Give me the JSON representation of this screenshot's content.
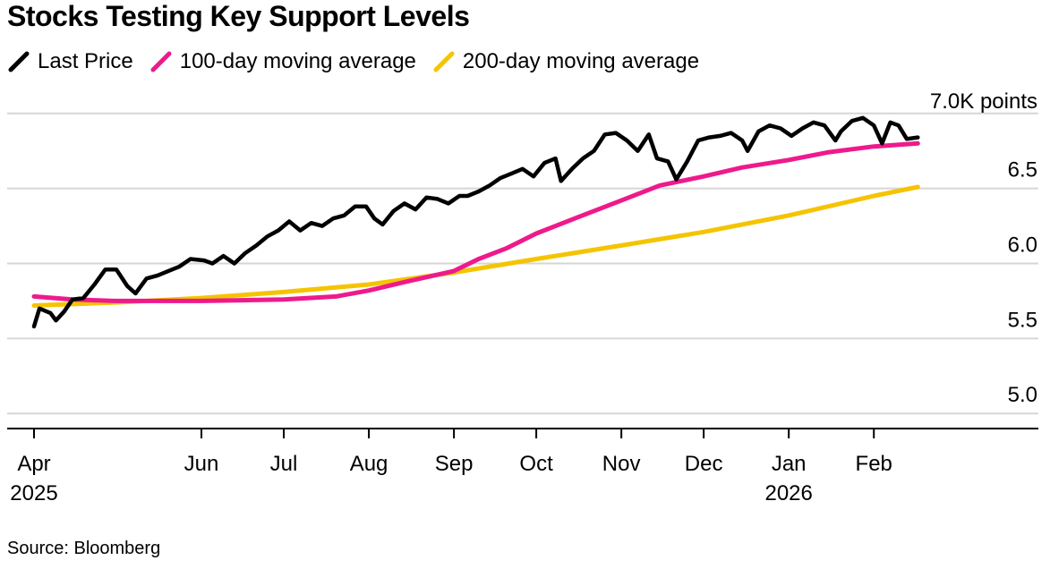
{
  "title": "Stocks Testing Key Support Levels",
  "source": "Source: Bloomberg",
  "chart_data": {
    "type": "line",
    "title": "Stocks Testing Key Support Levels",
    "unit_label": "7.0K points",
    "xlabel": "",
    "ylabel": "",
    "ylim": [
      4.9,
      7.1
    ],
    "yticks": [
      "5.0",
      "5.5",
      "6.0",
      "6.5"
    ],
    "x_tick_labels": [
      {
        "month": "Apr",
        "year": "2025",
        "date": "2025-04-01"
      },
      {
        "month": "Jun",
        "year": "",
        "date": "2025-06-01"
      },
      {
        "month": "Jul",
        "year": "",
        "date": "2025-07-01"
      },
      {
        "month": "Aug",
        "year": "",
        "date": "2025-08-01"
      },
      {
        "month": "Sep",
        "year": "",
        "date": "2025-09-01"
      },
      {
        "month": "Oct",
        "year": "",
        "date": "2025-10-01"
      },
      {
        "month": "Nov",
        "year": "",
        "date": "2025-11-01"
      },
      {
        "month": "Dec",
        "year": "",
        "date": "2025-12-01"
      },
      {
        "month": "Jan",
        "year": "2026",
        "date": "2026-01-01"
      },
      {
        "month": "Feb",
        "year": "",
        "date": "2026-02-01"
      }
    ],
    "xlim": [
      "2025-04-01",
      "2026-03-15"
    ],
    "grid": true,
    "legend_position": "top-left",
    "series": [
      {
        "name": "Last Price",
        "color": "#000000",
        "points": [
          [
            "2025-04-01",
            5.58
          ],
          [
            "2025-04-03",
            5.7
          ],
          [
            "2025-04-07",
            5.67
          ],
          [
            "2025-04-09",
            5.62
          ],
          [
            "2025-04-12",
            5.68
          ],
          [
            "2025-04-15",
            5.76
          ],
          [
            "2025-04-19",
            5.77
          ],
          [
            "2025-04-23",
            5.86
          ],
          [
            "2025-04-27",
            5.96
          ],
          [
            "2025-05-01",
            5.96
          ],
          [
            "2025-05-05",
            5.85
          ],
          [
            "2025-05-08",
            5.8
          ],
          [
            "2025-05-12",
            5.9
          ],
          [
            "2025-05-16",
            5.92
          ],
          [
            "2025-05-20",
            5.95
          ],
          [
            "2025-05-24",
            5.98
          ],
          [
            "2025-05-28",
            6.03
          ],
          [
            "2025-06-02",
            6.02
          ],
          [
            "2025-06-05",
            6.0
          ],
          [
            "2025-06-09",
            6.05
          ],
          [
            "2025-06-13",
            6.0
          ],
          [
            "2025-06-17",
            6.07
          ],
          [
            "2025-06-21",
            6.12
          ],
          [
            "2025-06-25",
            6.18
          ],
          [
            "2025-06-29",
            6.22
          ],
          [
            "2025-07-03",
            6.28
          ],
          [
            "2025-07-07",
            6.22
          ],
          [
            "2025-07-11",
            6.27
          ],
          [
            "2025-07-15",
            6.25
          ],
          [
            "2025-07-19",
            6.3
          ],
          [
            "2025-07-23",
            6.32
          ],
          [
            "2025-07-27",
            6.38
          ],
          [
            "2025-07-31",
            6.38
          ],
          [
            "2025-08-03",
            6.3
          ],
          [
            "2025-08-06",
            6.26
          ],
          [
            "2025-08-10",
            6.35
          ],
          [
            "2025-08-14",
            6.4
          ],
          [
            "2025-08-18",
            6.36
          ],
          [
            "2025-08-22",
            6.44
          ],
          [
            "2025-08-26",
            6.43
          ],
          [
            "2025-08-30",
            6.4
          ],
          [
            "2025-09-03",
            6.45
          ],
          [
            "2025-09-06",
            6.45
          ],
          [
            "2025-09-10",
            6.48
          ],
          [
            "2025-09-14",
            6.52
          ],
          [
            "2025-09-18",
            6.57
          ],
          [
            "2025-09-22",
            6.6
          ],
          [
            "2025-09-26",
            6.63
          ],
          [
            "2025-09-30",
            6.58
          ],
          [
            "2025-10-04",
            6.67
          ],
          [
            "2025-10-08",
            6.7
          ],
          [
            "2025-10-10",
            6.55
          ],
          [
            "2025-10-14",
            6.63
          ],
          [
            "2025-10-18",
            6.7
          ],
          [
            "2025-10-22",
            6.75
          ],
          [
            "2025-10-26",
            6.86
          ],
          [
            "2025-10-30",
            6.87
          ],
          [
            "2025-11-03",
            6.82
          ],
          [
            "2025-11-07",
            6.75
          ],
          [
            "2025-11-11",
            6.86
          ],
          [
            "2025-11-14",
            6.7
          ],
          [
            "2025-11-18",
            6.68
          ],
          [
            "2025-11-21",
            6.56
          ],
          [
            "2025-11-25",
            6.68
          ],
          [
            "2025-11-29",
            6.82
          ],
          [
            "2025-12-03",
            6.84
          ],
          [
            "2025-12-07",
            6.85
          ],
          [
            "2025-12-11",
            6.87
          ],
          [
            "2025-12-15",
            6.82
          ],
          [
            "2025-12-17",
            6.75
          ],
          [
            "2025-12-21",
            6.88
          ],
          [
            "2025-12-25",
            6.92
          ],
          [
            "2025-12-29",
            6.9
          ],
          [
            "2026-01-02",
            6.85
          ],
          [
            "2026-01-06",
            6.9
          ],
          [
            "2026-01-10",
            6.94
          ],
          [
            "2026-01-14",
            6.92
          ],
          [
            "2026-01-18",
            6.82
          ],
          [
            "2026-01-20",
            6.88
          ],
          [
            "2026-01-24",
            6.95
          ],
          [
            "2026-01-28",
            6.97
          ],
          [
            "2026-02-01",
            6.92
          ],
          [
            "2026-02-04",
            6.8
          ],
          [
            "2026-02-07",
            6.94
          ],
          [
            "2026-02-10",
            6.92
          ],
          [
            "2026-02-13",
            6.83
          ],
          [
            "2026-02-17",
            6.84
          ]
        ]
      },
      {
        "name": "100-day moving average",
        "color": "#ee1a8c",
        "points": [
          [
            "2025-04-01",
            5.78
          ],
          [
            "2025-04-15",
            5.76
          ],
          [
            "2025-05-01",
            5.75
          ],
          [
            "2025-06-01",
            5.75
          ],
          [
            "2025-07-01",
            5.76
          ],
          [
            "2025-07-20",
            5.78
          ],
          [
            "2025-08-01",
            5.82
          ],
          [
            "2025-08-15",
            5.88
          ],
          [
            "2025-09-01",
            5.95
          ],
          [
            "2025-09-10",
            6.03
          ],
          [
            "2025-09-20",
            6.1
          ],
          [
            "2025-10-01",
            6.2
          ],
          [
            "2025-10-15",
            6.3
          ],
          [
            "2025-11-01",
            6.42
          ],
          [
            "2025-11-15",
            6.52
          ],
          [
            "2025-12-01",
            6.58
          ],
          [
            "2025-12-15",
            6.64
          ],
          [
            "2026-01-01",
            6.69
          ],
          [
            "2026-01-15",
            6.74
          ],
          [
            "2026-02-01",
            6.78
          ],
          [
            "2026-02-17",
            6.8
          ]
        ]
      },
      {
        "name": "200-day moving average",
        "color": "#f5c400",
        "points": [
          [
            "2025-04-01",
            5.72
          ],
          [
            "2025-05-01",
            5.74
          ],
          [
            "2025-06-01",
            5.77
          ],
          [
            "2025-07-01",
            5.81
          ],
          [
            "2025-08-01",
            5.86
          ],
          [
            "2025-09-01",
            5.94
          ],
          [
            "2025-10-01",
            6.03
          ],
          [
            "2025-11-01",
            6.12
          ],
          [
            "2025-12-01",
            6.21
          ],
          [
            "2026-01-01",
            6.32
          ],
          [
            "2026-02-01",
            6.45
          ],
          [
            "2026-02-17",
            6.51
          ]
        ]
      }
    ]
  }
}
